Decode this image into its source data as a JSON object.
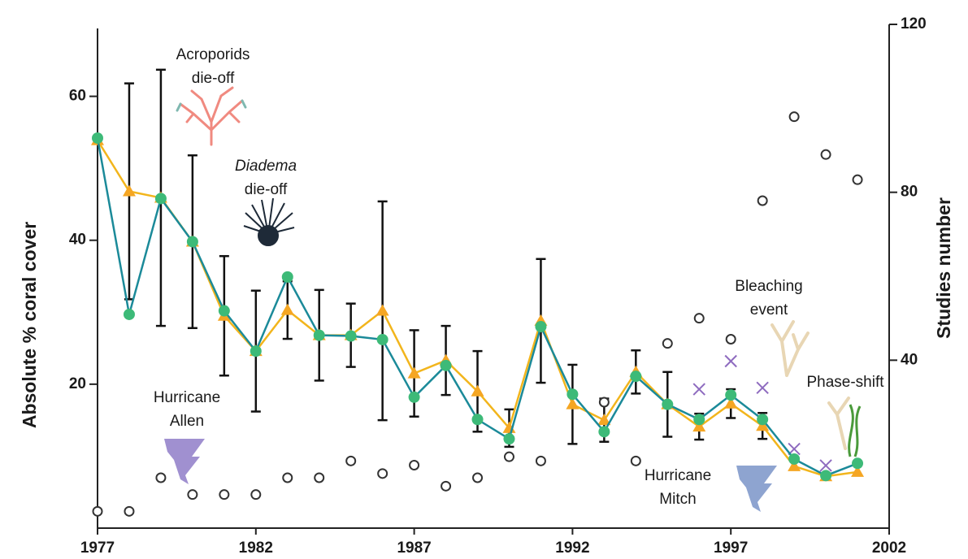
{
  "chart_data": {
    "type": "line",
    "ylabel": "Absolute % coral cover",
    "y2label": "Studies number",
    "x": [
      1977,
      1978,
      1979,
      1980,
      1981,
      1982,
      1983,
      1984,
      1985,
      1986,
      1987,
      1988,
      1989,
      1990,
      1991,
      1992,
      1993,
      1994,
      1995,
      1996,
      1997,
      1998,
      1999,
      2000,
      2001
    ],
    "xlim": [
      1977,
      2002
    ],
    "xticks": [
      1977,
      1982,
      1987,
      1992,
      1997,
      2002
    ],
    "ylim": [
      0,
      70
    ],
    "yticks": [
      20,
      40,
      60
    ],
    "y2lim": [
      0,
      120
    ],
    "y2ticks": [
      40,
      80,
      120
    ],
    "series": [
      {
        "style": "line-dots",
        "color": "#1b8a99",
        "marker_color": "#3dba78",
        "axis": "y",
        "values": [
          54.2,
          29.7,
          45.8,
          39.8,
          30.2,
          24.6,
          34.9,
          26.8,
          26.7,
          26.2,
          18.2,
          22.6,
          15.1,
          12.4,
          28.0,
          18.6,
          13.4,
          21.1,
          17.2,
          15.1,
          18.5,
          15.1,
          9.6,
          7.3,
          9.0
        ]
      },
      {
        "style": "line-triangles",
        "color": "#f2b51c",
        "marker_color": "#f5a623",
        "axis": "y",
        "values": [
          53.9,
          46.8,
          45.9,
          39.8,
          29.5,
          24.6,
          30.3,
          26.8,
          26.8,
          30.2,
          21.5,
          23.3,
          19.0,
          13.9,
          28.8,
          17.2,
          15.0,
          21.7,
          17.2,
          14.1,
          17.3,
          14.2,
          8.6,
          7.2,
          7.8
        ],
        "errors": [
          null,
          15,
          17.8,
          12,
          8.3,
          8.4,
          4,
          6.3,
          4.4,
          15.2,
          6,
          4.8,
          5.6,
          2.6,
          8.6,
          5.5,
          3,
          3,
          4.5,
          1.8,
          2,
          1.8,
          null,
          null,
          null
        ]
      },
      {
        "style": "crosses",
        "color": "#8e6bbf",
        "axis": "y",
        "values": [
          null,
          null,
          null,
          null,
          null,
          null,
          null,
          null,
          null,
          null,
          null,
          null,
          null,
          null,
          null,
          null,
          null,
          null,
          null,
          19.3,
          23.2,
          19.5,
          11,
          8.7,
          null
        ]
      },
      {
        "style": "open-circles",
        "color": "#333333",
        "axis": "y2",
        "values": [
          4,
          4,
          12,
          8,
          8,
          8,
          12,
          12,
          16,
          13,
          15,
          10,
          12,
          17,
          16,
          null,
          30,
          16,
          44,
          50,
          45,
          78,
          98,
          89,
          83
        ]
      }
    ],
    "annotations": [
      {
        "lines": [
          "Acroporids",
          "die-off"
        ]
      },
      {
        "lines": [
          "Diadema",
          "die-off"
        ]
      },
      {
        "lines": [
          "Hurricane",
          "Allen"
        ]
      },
      {
        "lines": [
          "Hurricane",
          "Mitch"
        ]
      },
      {
        "lines": [
          "Bleaching",
          "event"
        ]
      },
      {
        "lines": [
          "Phase-shift"
        ]
      }
    ]
  }
}
